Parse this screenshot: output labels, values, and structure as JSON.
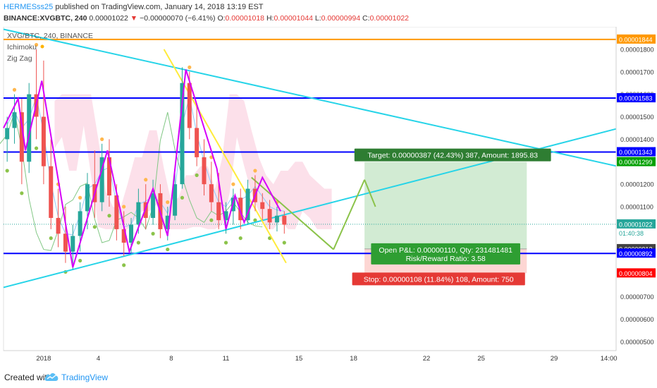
{
  "header": {
    "author": "HERMESss25",
    "published": " published on TradingView.com, January 14, 2018 13:19 EST",
    "symbol": "BINANCE:XVGBTC, 240",
    "last": "0.00001022",
    "change_arrow": "▼",
    "change": "−0.00000070 (−6.41%)",
    "o_label": "O:",
    "o_value": "0.00001018",
    "h_label": "H:",
    "h_value": "0.00001044",
    "l_label": "L:",
    "l_value": "0.00000994",
    "c_label": "C:",
    "c_value": "0.00001022"
  },
  "legend": {
    "title": "XVG/BTC, 240, BINANCE",
    "ichimoku": "Ichimoku",
    "zigzag": "Zig Zag"
  },
  "footer": {
    "created_with": "Created with",
    "brand": "TradingView"
  },
  "chart_data": {
    "type": "line",
    "title": "XVG/BTC, 240, BINANCE",
    "ylim": [
      4.6e-06,
      1.9e-05
    ],
    "y_ticks": [
      {
        "v": 5e-06,
        "label": "0.00000500"
      },
      {
        "v": 6e-06,
        "label": "0.00000600"
      },
      {
        "v": 7e-06,
        "label": "0.00000700"
      },
      {
        "v": 9e-06,
        "label": "0.00000900"
      },
      {
        "v": 1.1e-05,
        "label": "0.00001100"
      },
      {
        "v": 1.2e-05,
        "label": "0.00001200"
      },
      {
        "v": 1.4e-05,
        "label": "0.00001400"
      },
      {
        "v": 1.5e-05,
        "label": "0.00001500"
      },
      {
        "v": 1.6e-05,
        "label": "0.00001600"
      },
      {
        "v": 1.7e-05,
        "label": "0.00001700"
      },
      {
        "v": 1.8e-05,
        "label": "0.00001800"
      }
    ],
    "x_ticks": [
      {
        "day": 1,
        "label": "2018"
      },
      {
        "day": 4,
        "label": "4"
      },
      {
        "day": 8,
        "label": "8"
      },
      {
        "day": 11,
        "label": "11"
      },
      {
        "day": 15,
        "label": "15"
      },
      {
        "day": 18,
        "label": "18"
      },
      {
        "day": 22,
        "label": "22"
      },
      {
        "day": 25,
        "label": "25"
      },
      {
        "day": 29,
        "label": "29"
      },
      {
        "day": 32,
        "label": "14:00"
      }
    ],
    "xlim_days": [
      -1.2,
      32.4
    ],
    "price_labels": [
      {
        "v": 1.844e-05,
        "label": "0.00001844",
        "bg": "#ff9800",
        "fg": "#ffffff"
      },
      {
        "v": 1.583e-05,
        "label": "0.00001583",
        "bg": "#0000ff",
        "fg": "#ffffff"
      },
      {
        "v": 1.343e-05,
        "label": "0.00001343",
        "bg": "#0000ff",
        "fg": "#ffffff"
      },
      {
        "v": 1.299e-05,
        "label": "0.00001299",
        "bg": "#00a000",
        "fg": "#ffffff"
      },
      {
        "v": 1.022e-05,
        "label": "0.00001022",
        "bg": "#26a69a",
        "fg": "#ffffff"
      },
      {
        "v": 9.12e-06,
        "label": "0.00000912",
        "bg": "#424242",
        "fg": "#ffffff"
      },
      {
        "v": 8.92e-06,
        "label": "0.00000892",
        "bg": "#0000ff",
        "fg": "#ffffff"
      },
      {
        "v": 8.04e-06,
        "label": "0.00000804",
        "bg": "#ff0000",
        "fg": "#ffffff"
      }
    ],
    "countdown": "01:40:38",
    "horizontal_lines": [
      {
        "v": 1.844e-05,
        "color": "#ff9800"
      },
      {
        "v": 1.583e-05,
        "color": "#0000ff"
      },
      {
        "v": 1.343e-05,
        "color": "#0000ff"
      },
      {
        "v": 8.92e-06,
        "color": "#0000ff"
      }
    ],
    "trendlines": [
      {
        "x1": -1.2,
        "y1": 1.889e-05,
        "x2": 32.4,
        "y2": 1.281e-05,
        "color": "#26d4e8"
      },
      {
        "x1": -1.2,
        "y1": 7.41e-06,
        "x2": 32.4,
        "y2": 1.446e-05,
        "color": "#26d4e8"
      },
      {
        "x1": 7.6,
        "y1": 1.8e-05,
        "x2": 14.3,
        "y2": 8.5e-06,
        "color": "#ffeb3b"
      },
      {
        "x1": 12.4,
        "y1": 1.23e-05,
        "x2": 16.9,
        "y2": 9.1e-06,
        "color": "#8bc34a"
      },
      {
        "x1": 16.9,
        "y1": 9.1e-06,
        "x2": 18.6,
        "y2": 1.22e-05,
        "color": "#8bc34a"
      },
      {
        "x1": 18.6,
        "y1": 1.22e-05,
        "x2": 19.2,
        "y2": 1.1e-05,
        "color": "#8bc34a"
      }
    ],
    "zigzag": [
      {
        "x": -1.2,
        "y": 1.45e-05
      },
      {
        "x": -0.4,
        "y": 1.58e-05
      },
      {
        "x": 0.0,
        "y": 1.35e-05
      },
      {
        "x": 0.9,
        "y": 1.66e-05
      },
      {
        "x": 2.6,
        "y": 8.3e-06
      },
      {
        "x": 4.5,
        "y": 1.35e-05
      },
      {
        "x": 5.7,
        "y": 9e-06
      },
      {
        "x": 7.0,
        "y": 1.18e-05
      },
      {
        "x": 7.8,
        "y": 9.7e-06
      },
      {
        "x": 8.8,
        "y": 1.71e-05
      },
      {
        "x": 10.5,
        "y": 1.27e-05
      },
      {
        "x": 11.0,
        "y": 1e-05
      },
      {
        "x": 11.5,
        "y": 1.15e-05
      },
      {
        "x": 12.0,
        "y": 1.03e-05
      },
      {
        "x": 13.0,
        "y": 1.23e-05
      },
      {
        "x": 14.0,
        "y": 1.08e-05
      }
    ],
    "position": {
      "x_start": 18.6,
      "x_end": 27.5,
      "entry": 9.12e-06,
      "target": 1.299e-05,
      "stop": 8.04e-06,
      "target_label": "Target: 0.00000387 (42.43%) 387, Amount: 1895.83",
      "pnl_label": "Open P&L: 0.00000110, Qty: 231481481",
      "rr_label": "Risk/Reward Ratio: 3.58",
      "stop_label": "Stop: 0.00000108 (11.84%) 108, Amount: 750"
    },
    "candles": [
      {
        "x": -1.0,
        "o": 1.4e-05,
        "h": 1.5e-05,
        "l": 1.3e-05,
        "c": 1.45e-05
      },
      {
        "x": -0.6,
        "o": 1.45e-05,
        "h": 1.6e-05,
        "l": 1.38e-05,
        "c": 1.52e-05
      },
      {
        "x": -0.2,
        "o": 1.52e-05,
        "h": 1.58e-05,
        "l": 1.2e-05,
        "c": 1.3e-05
      },
      {
        "x": 0.2,
        "o": 1.3e-05,
        "h": 1.65e-05,
        "l": 1.25e-05,
        "c": 1.6e-05
      },
      {
        "x": 0.6,
        "o": 1.6e-05,
        "h": 1.8e-05,
        "l": 1.4e-05,
        "c": 1.5e-05
      },
      {
        "x": 1.0,
        "o": 1.5e-05,
        "h": 1.75e-05,
        "l": 1.2e-05,
        "c": 1.28e-05
      },
      {
        "x": 1.4,
        "o": 1.28e-05,
        "h": 1.4e-05,
        "l": 1e-05,
        "c": 1.05e-05
      },
      {
        "x": 1.8,
        "o": 1.05e-05,
        "h": 1.18e-05,
        "l": 9.2e-06,
        "c": 9.8e-06
      },
      {
        "x": 2.2,
        "o": 9.8e-06,
        "h": 1.1e-05,
        "l": 8.5e-06,
        "c": 9e-06
      },
      {
        "x": 2.6,
        "o": 9e-06,
        "h": 1.02e-05,
        "l": 8.2e-06,
        "c": 9.7e-06
      },
      {
        "x": 3.0,
        "o": 9.7e-06,
        "h": 1.12e-05,
        "l": 9e-06,
        "c": 1.08e-05
      },
      {
        "x": 3.4,
        "o": 1.08e-05,
        "h": 1.25e-05,
        "l": 1e-05,
        "c": 1.2e-05
      },
      {
        "x": 3.8,
        "o": 1.2e-05,
        "h": 1.35e-05,
        "l": 1.05e-05,
        "c": 1.12e-05
      },
      {
        "x": 4.2,
        "o": 1.12e-05,
        "h": 1.38e-05,
        "l": 1.08e-05,
        "c": 1.32e-05
      },
      {
        "x": 4.6,
        "o": 1.32e-05,
        "h": 1.4e-05,
        "l": 1.1e-05,
        "c": 1.15e-05
      },
      {
        "x": 5.0,
        "o": 1.15e-05,
        "h": 1.2e-05,
        "l": 9.5e-06,
        "c": 1e-05
      },
      {
        "x": 5.4,
        "o": 1e-05,
        "h": 1.08e-05,
        "l": 8.8e-06,
        "c": 9.4e-06
      },
      {
        "x": 5.8,
        "o": 9.4e-06,
        "h": 1.05e-05,
        "l": 8.9e-06,
        "c": 1.02e-05
      },
      {
        "x": 6.2,
        "o": 1.02e-05,
        "h": 1.18e-05,
        "l": 9.8e-06,
        "c": 1.12e-05
      },
      {
        "x": 6.6,
        "o": 1.12e-05,
        "h": 1.2e-05,
        "l": 1e-05,
        "c": 1.05e-05
      },
      {
        "x": 7.0,
        "o": 1.05e-05,
        "h": 1.22e-05,
        "l": 1.02e-05,
        "c": 1.16e-05
      },
      {
        "x": 7.4,
        "o": 1.16e-05,
        "h": 1.2e-05,
        "l": 9.6e-06,
        "c": 1e-05
      },
      {
        "x": 7.8,
        "o": 1e-05,
        "h": 1.1e-05,
        "l": 9.5e-06,
        "c": 1.06e-05
      },
      {
        "x": 8.2,
        "o": 1.06e-05,
        "h": 1.25e-05,
        "l": 1.04e-05,
        "c": 1.2e-05
      },
      {
        "x": 8.6,
        "o": 1.2e-05,
        "h": 1.72e-05,
        "l": 1.18e-05,
        "c": 1.65e-05
      },
      {
        "x": 9.0,
        "o": 1.65e-05,
        "h": 1.7e-05,
        "l": 1.4e-05,
        "c": 1.45e-05
      },
      {
        "x": 9.4,
        "o": 1.45e-05,
        "h": 1.55e-05,
        "l": 1.28e-05,
        "c": 1.32e-05
      },
      {
        "x": 9.8,
        "o": 1.32e-05,
        "h": 1.4e-05,
        "l": 1.15e-05,
        "c": 1.2e-05
      },
      {
        "x": 10.2,
        "o": 1.2e-05,
        "h": 1.3e-05,
        "l": 1.08e-05,
        "c": 1.12e-05
      },
      {
        "x": 10.6,
        "o": 1.12e-05,
        "h": 1.25e-05,
        "l": 1e-05,
        "c": 1.04e-05
      },
      {
        "x": 11.0,
        "o": 1.04e-05,
        "h": 1.12e-05,
        "l": 9.8e-06,
        "c": 1.08e-05
      },
      {
        "x": 11.4,
        "o": 1.08e-05,
        "h": 1.18e-05,
        "l": 1.02e-05,
        "c": 1.14e-05
      },
      {
        "x": 11.8,
        "o": 1.14e-05,
        "h": 1.18e-05,
        "l": 1e-05,
        "c": 1.04e-05
      },
      {
        "x": 12.2,
        "o": 1.04e-05,
        "h": 1.22e-05,
        "l": 1.02e-05,
        "c": 1.18e-05
      },
      {
        "x": 12.6,
        "o": 1.18e-05,
        "h": 1.24e-05,
        "l": 1.08e-05,
        "c": 1.12e-05
      },
      {
        "x": 13.0,
        "o": 1.12e-05,
        "h": 1.16e-05,
        "l": 1.04e-05,
        "c": 1.09e-05
      },
      {
        "x": 13.4,
        "o": 1.09e-05,
        "h": 1.13e-05,
        "l": 1e-05,
        "c": 1.03e-05
      },
      {
        "x": 13.8,
        "o": 1.03e-05,
        "h": 1.1e-05,
        "l": 9.9e-06,
        "c": 1.06e-05
      },
      {
        "x": 14.2,
        "o": 1.06e-05,
        "h": 1.08e-05,
        "l": 9.8e-06,
        "c": 1.02e-05
      }
    ]
  }
}
